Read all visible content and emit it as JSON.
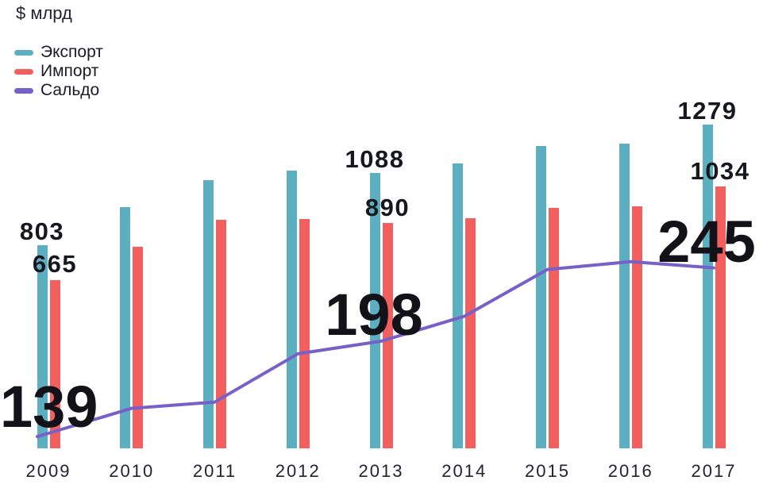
{
  "chart_data": {
    "type": "bar",
    "ylabel": "$ млрд",
    "categories": [
      "2009",
      "2010",
      "2011",
      "2012",
      "2013",
      "2014",
      "2015",
      "2016",
      "2017"
    ],
    "series": [
      {
        "name": "Экспорт",
        "type": "bar",
        "color": "#5CAFC0",
        "values": [
          803,
          952,
          1061,
          1096,
          1088,
          1124,
          1194,
          1204,
          1279
        ]
      },
      {
        "name": "Импорт",
        "type": "bar",
        "color": "#F15F5F",
        "values": [
          665,
          797,
          902,
          906,
          890,
          910,
          949,
          955,
          1034
        ]
      },
      {
        "name": "Сальдо",
        "type": "line",
        "color": "#7761C9",
        "values": [
          139,
          155,
          159,
          190,
          198,
          214,
          244,
          249,
          245
        ]
      }
    ],
    "visible_value_labels": [
      {
        "year": "2009",
        "export": "803",
        "import": "665",
        "saldo": "139"
      },
      {
        "year": "2013",
        "export": "1088",
        "import": "890",
        "saldo": "198"
      },
      {
        "year": "2017",
        "export": "1279",
        "import": "1034",
        "saldo": "245"
      }
    ],
    "legend_position": "top-left",
    "grid": false,
    "y_axis_visible": false
  }
}
